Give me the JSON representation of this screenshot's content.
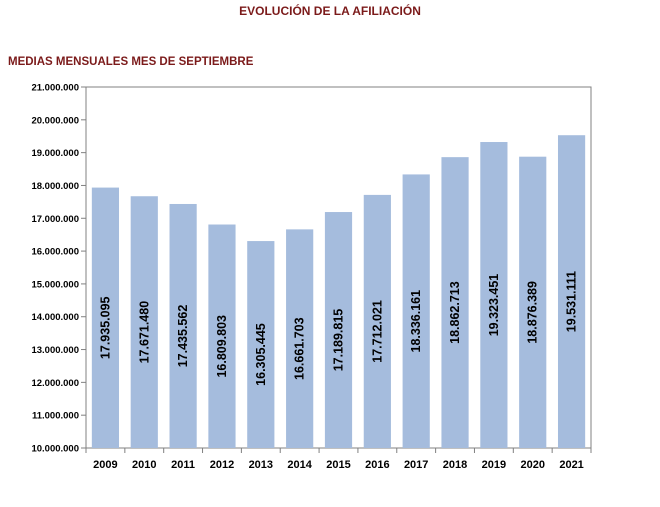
{
  "chart_data": {
    "type": "bar",
    "title": "EVOLUCIÓN DE LA AFILIACIÓN",
    "subtitle": "MEDIAS MENSUALES MES DE SEPTIEMBRE",
    "categories": [
      "2009",
      "2010",
      "2011",
      "2012",
      "2013",
      "2014",
      "2015",
      "2016",
      "2017",
      "2018",
      "2019",
      "2020",
      "2021"
    ],
    "values": [
      17935095,
      17671480,
      17435562,
      16809803,
      16305445,
      16661703,
      17189815,
      17712021,
      18336161,
      18862713,
      19323451,
      18876389,
      19531111
    ],
    "data_labels": [
      "17.935.095",
      "17.671.480",
      "17.435.562",
      "16.809.803",
      "16.305.445",
      "16.661.703",
      "17.189.815",
      "17.712.021",
      "18.336.161",
      "18.862.713",
      "19.323.451",
      "18.876.389",
      "19.531.111"
    ],
    "ylim": [
      10000000,
      21000000
    ],
    "yticks": [
      10000000,
      11000000,
      12000000,
      13000000,
      14000000,
      15000000,
      16000000,
      17000000,
      18000000,
      19000000,
      20000000,
      21000000
    ],
    "ytick_labels": [
      "10.000.000",
      "11.000.000",
      "12.000.000",
      "13.000.000",
      "14.000.000",
      "15.000.000",
      "16.000.000",
      "17.000.000",
      "18.000.000",
      "19.000.000",
      "20.000.000",
      "21.000.000"
    ],
    "xlabel": "",
    "ylabel": "",
    "grid": false,
    "legend": "none",
    "bar_color": "#a5bcdd",
    "axis_color": "#808080"
  }
}
